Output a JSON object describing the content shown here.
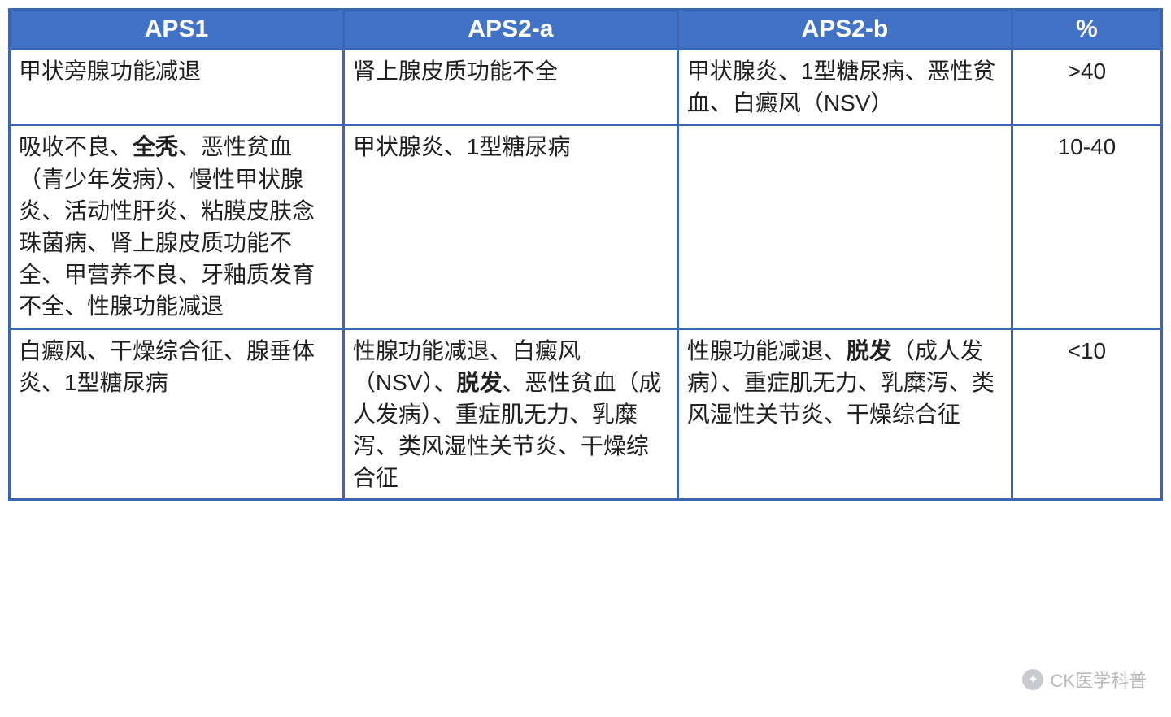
{
  "table": {
    "columns": [
      "APS1",
      "APS2-a",
      "APS2-b",
      "%"
    ],
    "column_widths_pct": [
      29,
      29,
      29,
      13
    ],
    "header_bg": "#4272c5",
    "header_fg": "#ffffff",
    "border_color": "#3b66b4",
    "text_color": "#202020",
    "font_size_header": 30,
    "font_size_cell": 28,
    "rows": [
      {
        "aps1": {
          "segments": [
            {
              "text": "甲状旁腺功能减退"
            }
          ]
        },
        "aps2a": {
          "segments": [
            {
              "text": "肾上腺皮质功能不全"
            }
          ]
        },
        "aps2b": {
          "segments": [
            {
              "text": "甲状腺炎、1型糖尿病、恶性贫血、白癜风（NSV）"
            }
          ]
        },
        "pct": ">40"
      },
      {
        "aps1": {
          "segments": [
            {
              "text": "吸收不良、"
            },
            {
              "text": "全秃",
              "bold": true
            },
            {
              "text": "、恶性贫血（青少年发病）、慢性甲状腺炎、活动性肝炎、粘膜皮肤念珠菌病、肾上腺皮质功能不全、甲营养不良、牙釉质发育不全、性腺功能减退"
            }
          ]
        },
        "aps2a": {
          "segments": [
            {
              "text": "甲状腺炎、1型糖尿病"
            }
          ]
        },
        "aps2b": {
          "segments": []
        },
        "pct": "10-40"
      },
      {
        "aps1": {
          "segments": [
            {
              "text": "白癜风、干燥综合征、腺垂体炎、1型糖尿病"
            }
          ]
        },
        "aps2a": {
          "segments": [
            {
              "text": "性腺功能减退、白癜风（NSV）、"
            },
            {
              "text": "脱发",
              "bold": true
            },
            {
              "text": "、恶性贫血（成人发病）、重症肌无力、乳糜泻、类风湿性关节炎、干燥综合征"
            }
          ]
        },
        "aps2b": {
          "segments": [
            {
              "text": "性腺功能减退、"
            },
            {
              "text": "脱发",
              "bold": true
            },
            {
              "text": "（成人发病）、重症肌无力、乳糜泻、类风湿性关节炎、干燥综合征"
            }
          ]
        },
        "pct": "<10"
      }
    ]
  },
  "watermark": {
    "text": "CK医学科普",
    "color": "#808080",
    "opacity": 0.55
  }
}
